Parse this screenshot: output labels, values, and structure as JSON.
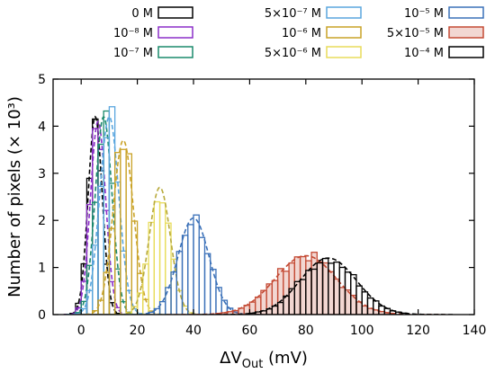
{
  "chart_data": {
    "type": "bar",
    "subtype": "overlaid histogram with Gaussian fits",
    "xlabel": {
      "prefix": "ΔV",
      "subscript": "Out",
      "suffix": " (mV)"
    },
    "ylabel": "Number of pixels (× 10³)",
    "xlim": [
      -10,
      140
    ],
    "ylim": [
      0,
      5
    ],
    "xticks": [
      "0",
      "20",
      "40",
      "60",
      "80",
      "100",
      "120",
      "140"
    ],
    "yticks": [
      "0",
      "1",
      "2",
      "3",
      "4",
      "5"
    ],
    "bin_width_mV": 2,
    "legend_position": "top",
    "series": [
      {
        "name": "0 M",
        "color": "#000000",
        "center": 5,
        "sigma": 2.5,
        "peak": 4.2
      },
      {
        "name": "10⁻⁸ M",
        "color": "#8b2fc9",
        "center": 6,
        "sigma": 2.7,
        "peak": 4.1
      },
      {
        "name": "10⁻⁷ M",
        "color": "#1a8a6c",
        "center": 8,
        "sigma": 3.0,
        "peak": 4.2
      },
      {
        "name": "5×10⁻⁷ M",
        "color": "#5aa6de",
        "center": 10,
        "sigma": 3.4,
        "peak": 4.2
      },
      {
        "name": "10⁻⁶ M",
        "color": "#c9a227",
        "center": 15,
        "sigma": 3.6,
        "peak": 3.7
      },
      {
        "name": "5×10⁻⁶ M",
        "color": "#e8dc5a",
        "center": 28,
        "sigma": 3.8,
        "peak": 2.7
      },
      {
        "name": "10⁻⁵ M",
        "color": "#3a70b8",
        "center": 40,
        "sigma": 5.5,
        "peak": 2.05
      },
      {
        "name": "5×10⁻⁵ M",
        "color": "#c44a34",
        "center": 80,
        "sigma": 11,
        "peak": 1.25
      },
      {
        "name": "10⁻⁴ M",
        "color": "#000000",
        "center": 88,
        "sigma": 10,
        "peak": 1.2
      }
    ]
  }
}
